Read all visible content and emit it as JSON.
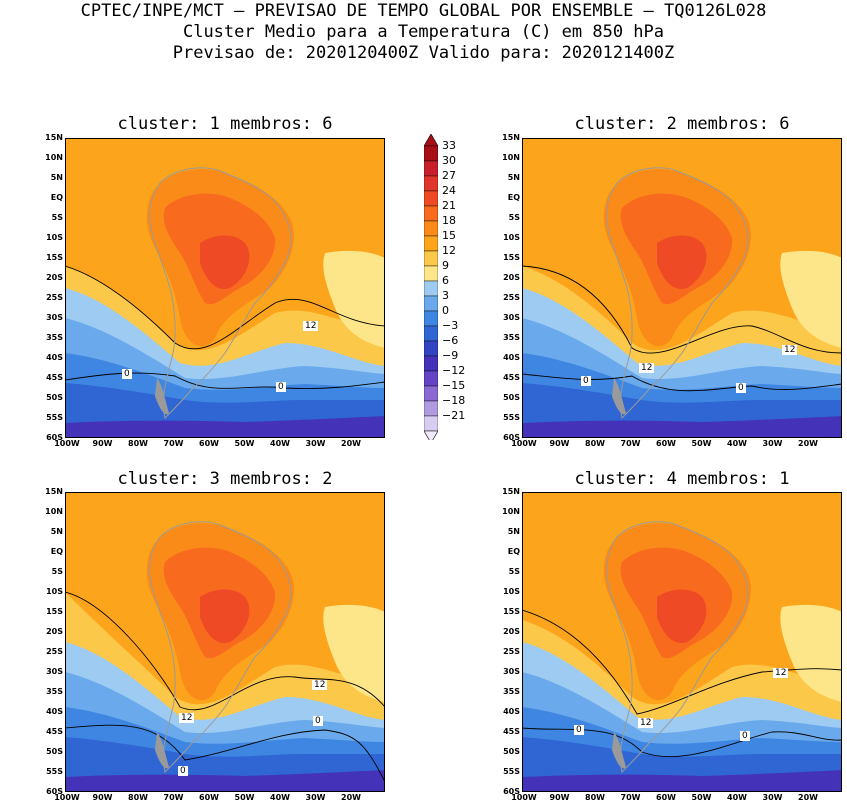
{
  "header": {
    "line1": "CPTEC/INPE/MCT – PREVISAO DE TEMPO GLOBAL POR ENSEMBLE – TQ0126L028",
    "line2": "Cluster Medio para a Temperatura (C) em 850 hPa",
    "line3": "Previsao de: 2020120400Z   Valido para: 2020121400Z"
  },
  "panels": [
    {
      "title": "cluster: 1   membros: 6",
      "labels": [
        {
          "text": "12"
        },
        {
          "text": "0"
        },
        {
          "text": "0"
        }
      ]
    },
    {
      "title": "cluster: 2   membros: 6",
      "labels": [
        {
          "text": "12"
        },
        {
          "text": "12"
        },
        {
          "text": "0"
        },
        {
          "text": "0"
        }
      ]
    },
    {
      "title": "cluster: 3   membros: 2",
      "labels": [
        {
          "text": "12"
        },
        {
          "text": "12"
        },
        {
          "text": "0"
        },
        {
          "text": "0"
        }
      ]
    },
    {
      "title": "cluster: 4   membros: 1",
      "labels": [
        {
          "text": "12"
        },
        {
          "text": "12"
        },
        {
          "text": "0"
        },
        {
          "text": "0"
        }
      ]
    }
  ],
  "lat_ticks": [
    "15N",
    "10N",
    "5N",
    "EQ",
    "5S",
    "10S",
    "15S",
    "20S",
    "25S",
    "30S",
    "35S",
    "40S",
    "45S",
    "50S",
    "55S",
    "60S"
  ],
  "lon_ticks": [
    "100W",
    "90W",
    "80W",
    "70W",
    "60W",
    "50W",
    "40W",
    "30W",
    "20W"
  ],
  "colorbar": {
    "labels": [
      "33",
      "30",
      "27",
      "24",
      "21",
      "18",
      "15",
      "12",
      "9",
      "6",
      "3",
      "0",
      "−3",
      "−6",
      "−9",
      "−12",
      "−15",
      "−18",
      "−21"
    ],
    "colors": [
      "#a50f15",
      "#c8202a",
      "#e0352b",
      "#ee4a26",
      "#f86a1e",
      "#fb8b18",
      "#fca51c",
      "#fcc84a",
      "#fde68a",
      "#9ecbf2",
      "#6aa9ec",
      "#3f86e2",
      "#2f66d4",
      "#3344c2",
      "#4433b8",
      "#6444c4",
      "#8a6ad2",
      "#b19be0",
      "#d8cdf0"
    ]
  }
}
